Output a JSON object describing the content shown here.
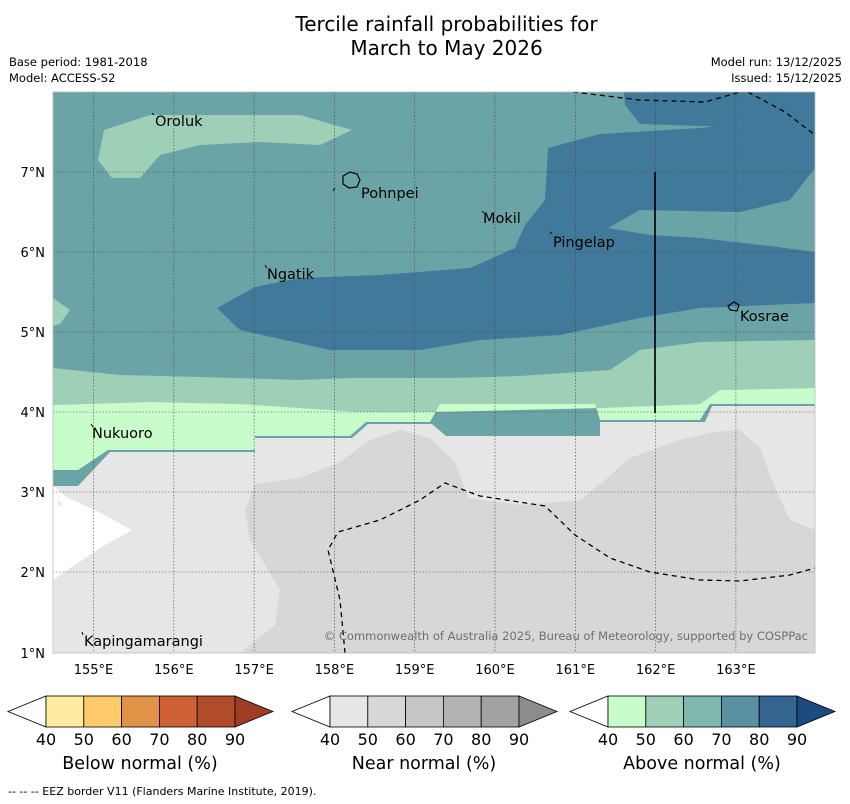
{
  "title": {
    "line1": "Tercile rainfall probabilities for",
    "line2": "March to May 2026"
  },
  "meta": {
    "base_period": "Base period: 1981-2018",
    "model": "Model: ACCESS-S2",
    "model_run": "Model run: 13/12/2025",
    "issued": "Issued: 15/12/2025"
  },
  "map": {
    "lon_ticks": [
      "155°E",
      "156°E",
      "157°E",
      "158°E",
      "159°E",
      "160°E",
      "161°E",
      "162°E",
      "163°E"
    ],
    "lat_ticks": [
      "7°N",
      "6°N",
      "5°N",
      "4°N",
      "3°N",
      "2°N",
      "1°N"
    ],
    "places": {
      "oroluk": "Oroluk",
      "pohnpei": "Pohnpei",
      "mokil": "Mokil",
      "pingelap": "Pingelap",
      "ngatik": "Ngatik",
      "kosrae": "Kosrae",
      "nukuoro": "Nukuoro",
      "kapingamarangi": "Kapingamarangi"
    },
    "copyright": "© Commonwealth of Australia 2025, Bureau of Meteorology, supported by COSPPac"
  },
  "colorbars": {
    "below": {
      "caption": "Below normal (%)",
      "labels": [
        "40",
        "50",
        "60",
        "70",
        "80",
        "90"
      ],
      "colors": [
        "#ffffff",
        "#ffeca0",
        "#fdcb6b",
        "#e09347",
        "#cd6135",
        "#b04c29",
        "#a13c24"
      ]
    },
    "near": {
      "caption": "Near normal (%)",
      "labels": [
        "40",
        "50",
        "60",
        "70",
        "80",
        "90"
      ],
      "colors": [
        "#ffffff",
        "#e6e6e6",
        "#d7d7d7",
        "#c6c6c6",
        "#b3b3b3",
        "#a2a2a2",
        "#8c8c8c"
      ]
    },
    "above": {
      "caption": "Above normal (%)",
      "labels": [
        "40",
        "50",
        "60",
        "70",
        "80",
        "90"
      ],
      "colors": [
        "#ffffff",
        "#c8fcca",
        "#9ecfb7",
        "#80b8b0",
        "#5a91a1",
        "#34648f",
        "#1d4a81"
      ]
    }
  },
  "footer": "--  --  -- EEZ border V11 (Flanders Marine Institute, 2019)."
}
